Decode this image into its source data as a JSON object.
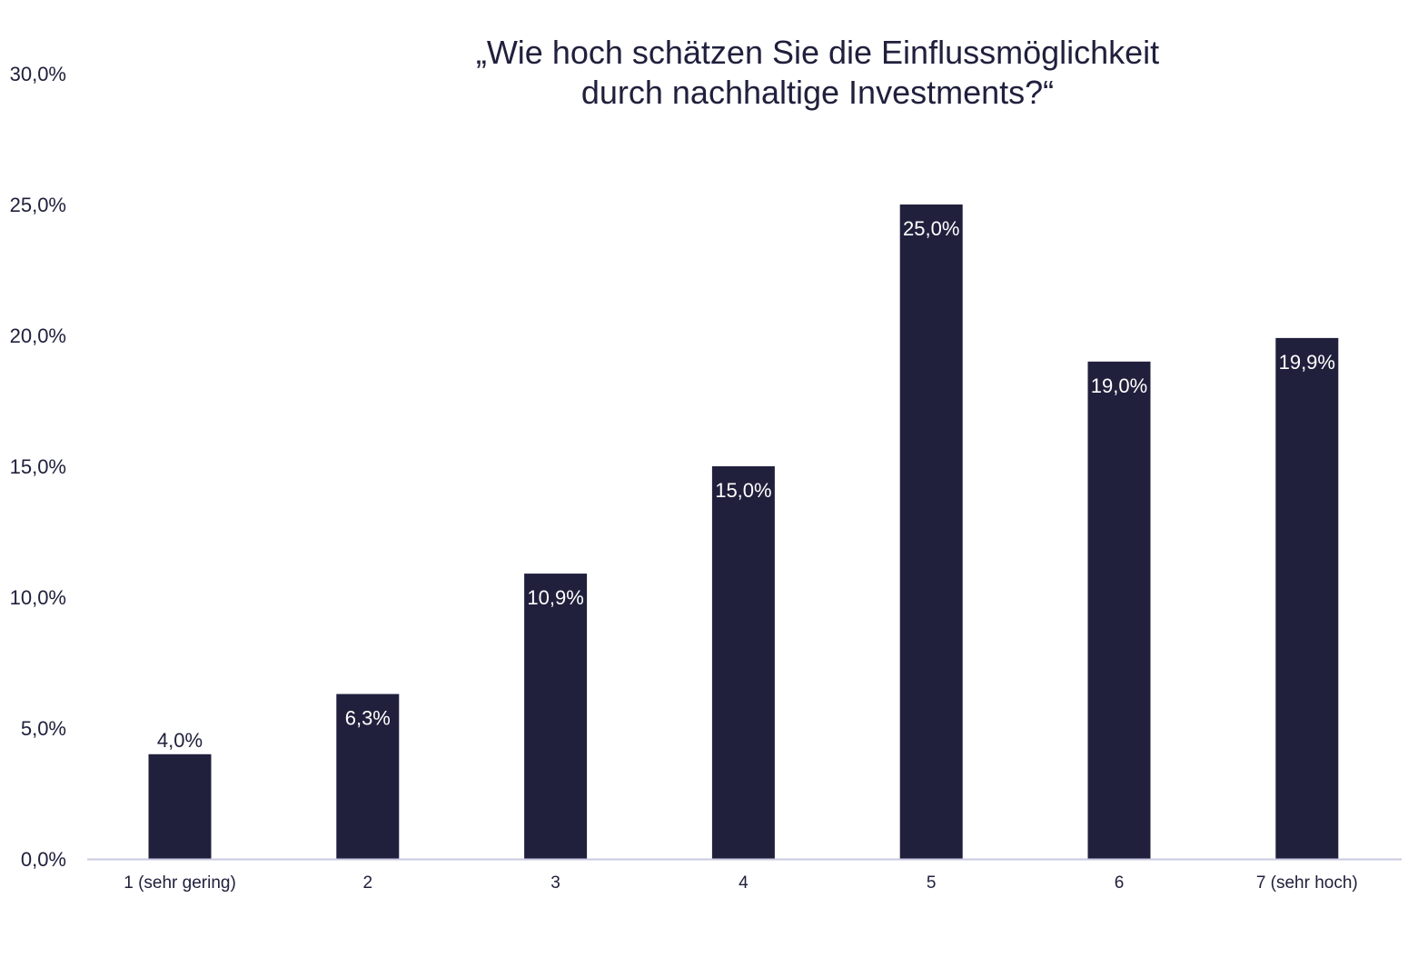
{
  "chart_data": {
    "type": "bar",
    "title": [
      "„Wie hoch schätzen Sie die Einflussmöglichkeit",
      "durch nachhaltige Investments?“"
    ],
    "xlabel": "",
    "ylabel": "",
    "categories": [
      "1 (sehr gering)",
      "2",
      "3",
      "4",
      "5",
      "6",
      "7 (sehr hoch)"
    ],
    "values": [
      4.0,
      6.3,
      10.9,
      15.0,
      25.0,
      19.0,
      19.9
    ],
    "data_labels": [
      "4,0%",
      "6,3%",
      "10,9%",
      "15,0%",
      "25,0%",
      "19,0%",
      "19,9%"
    ],
    "ylim": [
      0,
      30
    ],
    "yticks": [
      0,
      5,
      10,
      15,
      20,
      25,
      30
    ],
    "ytick_labels": [
      "0,0%",
      "5,0%",
      "10,0%",
      "15,0%",
      "20,0%",
      "25,0%",
      "30,0%"
    ],
    "grid": false,
    "legend": "none",
    "colors": {
      "bar": "#20203d",
      "axis": "#c8c8e0",
      "label_inside": "#ffffff",
      "text": "#20203d"
    }
  }
}
